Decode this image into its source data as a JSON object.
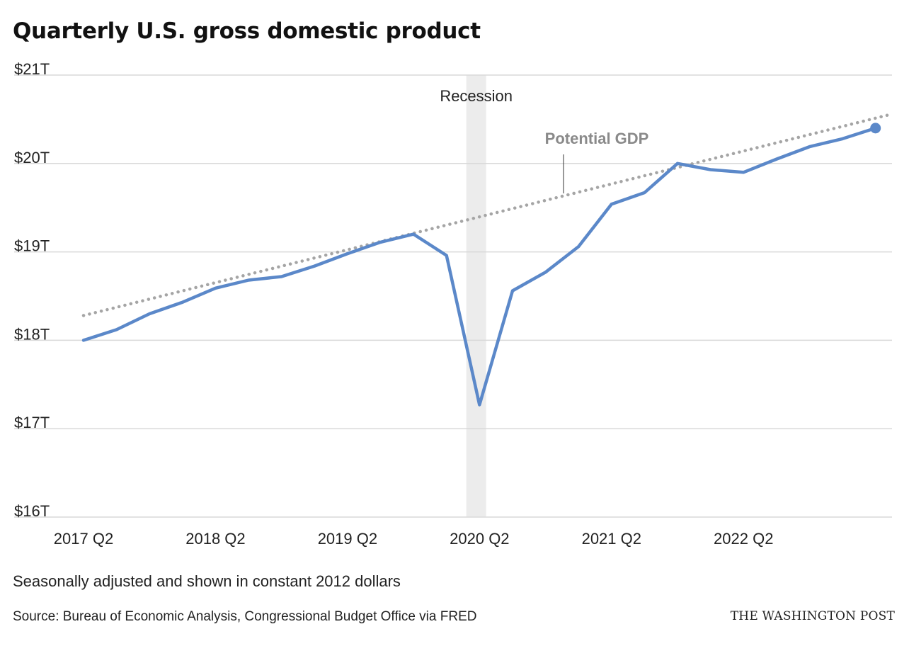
{
  "title": "Quarterly U.S. gross domestic product",
  "note": "Seasonally adjusted and shown in constant 2012 dollars",
  "source": "Source: Bureau of Economic Analysis, Congressional Budget Office via FRED",
  "credit": "THE WASHINGTON POST",
  "colors": {
    "gdp_line": "#5b88c9",
    "potential_line": "#a5a5a5",
    "recession_band": "#ececec",
    "grid": "#d9d9d9",
    "potential_label": "#8a8a8a"
  },
  "chart_data": {
    "type": "line",
    "title": "Quarterly U.S. gross domestic product",
    "xlabel": "",
    "ylabel": "",
    "ylim": [
      16,
      21
    ],
    "yticks": [
      16,
      17,
      18,
      19,
      20,
      21
    ],
    "ytick_labels": [
      "$16T",
      "$17T",
      "$18T",
      "$19T",
      "$20T",
      "$21T"
    ],
    "xlim": [
      0,
      24.5
    ],
    "xticks": [
      0,
      4,
      8,
      12,
      16,
      20
    ],
    "xtick_labels": [
      "2017 Q2",
      "2018 Q2",
      "2019 Q2",
      "2020 Q2",
      "2021 Q2",
      "2022 Q2"
    ],
    "grid": true,
    "recession": {
      "label": "Recession",
      "x_start": 11.6,
      "x_end": 12.2
    },
    "series": [
      {
        "name": "GDP",
        "x": [
          0,
          1,
          2,
          3,
          4,
          5,
          6,
          7,
          8,
          9,
          10,
          11,
          12,
          13,
          14,
          15,
          16,
          17,
          18,
          19,
          20,
          21,
          22,
          23,
          24
        ],
        "values": [
          18.0,
          18.12,
          18.3,
          18.43,
          18.59,
          18.68,
          18.72,
          18.84,
          18.98,
          19.11,
          19.2,
          18.96,
          17.27,
          18.56,
          18.77,
          19.06,
          19.54,
          19.67,
          20.0,
          19.93,
          19.9,
          20.05,
          20.19,
          20.28,
          20.4
        ],
        "end_marker": true
      },
      {
        "name": "Potential GDP",
        "label": "Potential GDP",
        "x": [
          0,
          24.4
        ],
        "values": [
          18.28,
          20.55
        ],
        "style": "dotted"
      }
    ]
  }
}
